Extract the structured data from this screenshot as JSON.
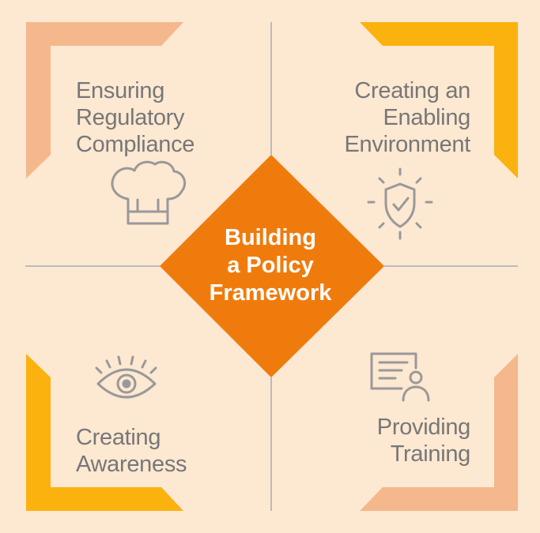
{
  "center": {
    "lines": [
      "Building",
      "a Policy",
      "Framework"
    ]
  },
  "quadrants": {
    "top_left": {
      "lines": [
        "Ensuring",
        "Regulatory",
        "Compliance"
      ],
      "icon": "chef-hat-icon"
    },
    "top_right": {
      "lines": [
        "Creating an",
        "Enabling",
        "Environment"
      ],
      "icon": "shield-check-icon"
    },
    "bottom_left": {
      "lines": [
        "Creating",
        "Awareness"
      ],
      "icon": "eye-icon"
    },
    "bottom_right": {
      "lines": [
        "Providing",
        "Training"
      ],
      "icon": "trainer-document-icon"
    }
  },
  "colors": {
    "background": "#fde8d2",
    "diamond": "#f07b0d",
    "bracket_light": "#f5b78c",
    "bracket_gold": "#fbb20f",
    "icon_gray": "#999999",
    "text_gray": "#777777",
    "divider": "#bbbbbb"
  }
}
